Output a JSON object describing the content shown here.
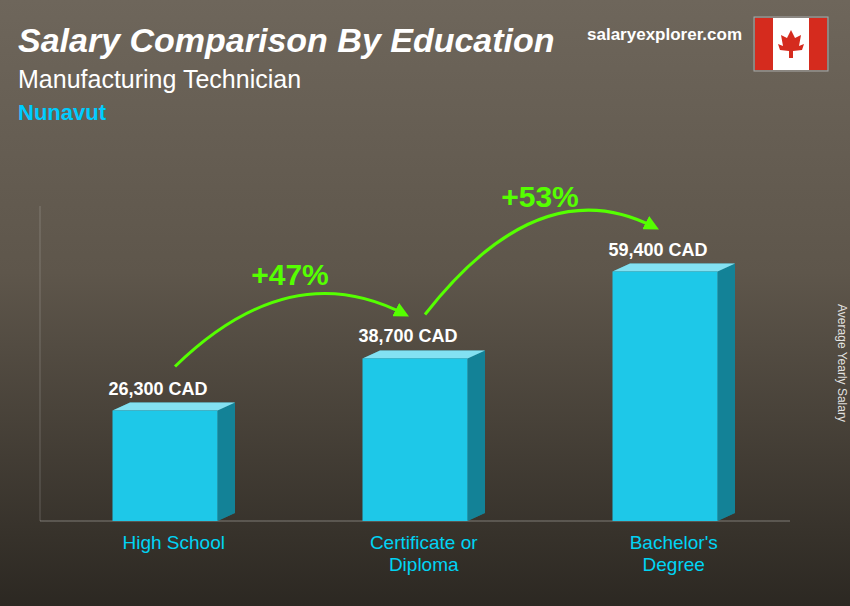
{
  "chart_data": {
    "type": "bar",
    "title": "Salary Comparison By Education",
    "subtitle": "Manufacturing Technician",
    "annotations": [
      "Nunavut",
      "salaryexplorer.com"
    ],
    "arrow_labels": [
      "+47%",
      "+53%"
    ],
    "ylabel": "Average Yearly Salary",
    "categories": [
      "High School",
      "Certificate or\nDiploma",
      "Bachelor's\nDegree"
    ],
    "values": [
      26300,
      38700,
      59400
    ],
    "value_labels": [
      "26,300 CAD",
      "38,700 CAD",
      "59,400 CAD"
    ],
    "data_labels": true,
    "color": "#1ec8e8",
    "ylim": [
      0,
      75000
    ],
    "tick_labels": false,
    "grid": false
  }
}
